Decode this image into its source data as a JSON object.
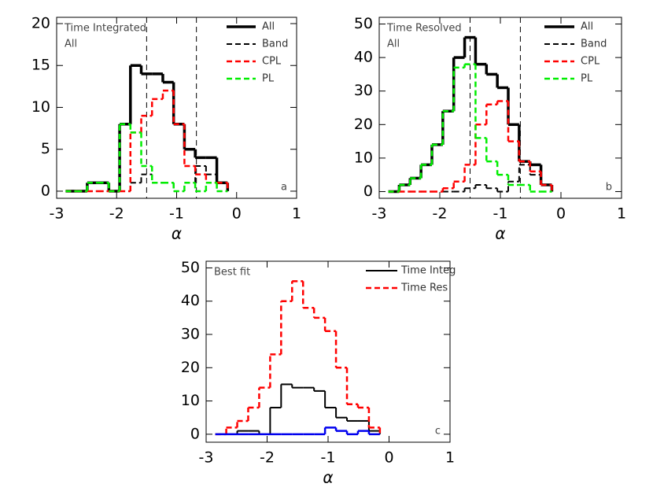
{
  "chart_data": [
    {
      "type": "histogram",
      "annotations": [
        "Time Integrated",
        "All"
      ],
      "panel_label": "a",
      "xlabel": "α",
      "bins": [
        -2.85,
        -2.67,
        -2.49,
        -2.31,
        -2.13,
        -1.95,
        -1.77,
        -1.59,
        -1.41,
        -1.23,
        -1.05,
        -0.87,
        -0.69,
        -0.51,
        -0.33,
        -0.15
      ],
      "series": [
        {
          "name": "All",
          "color": "#000000",
          "dash": false,
          "line_width": 3.5,
          "values": [
            0,
            0,
            1,
            1,
            0,
            8,
            15,
            14,
            14,
            13,
            8,
            5,
            4,
            4,
            1
          ]
        },
        {
          "name": "Band",
          "color": "#000000",
          "dash": true,
          "line_width": 2,
          "values": [
            0,
            0,
            0,
            0,
            0,
            0,
            1,
            2,
            1,
            1,
            0,
            1,
            3,
            2,
            0
          ]
        },
        {
          "name": "CPL",
          "color": "#ff0000",
          "dash": true,
          "line_width": 2.5,
          "values": [
            0,
            0,
            0,
            0,
            0,
            0,
            7,
            9,
            11,
            12,
            8,
            3,
            2,
            1,
            1
          ]
        },
        {
          "name": "PL",
          "color": "#00ee00",
          "dash": true,
          "line_width": 2.5,
          "values": [
            0,
            0,
            1,
            1,
            0,
            8,
            7,
            3,
            1,
            1,
            0,
            1,
            0,
            1,
            0
          ]
        }
      ],
      "vlines": [
        -1.5,
        -0.67
      ],
      "xlim": [
        -3,
        1
      ],
      "xticks": [
        -3,
        -2,
        -1,
        0,
        1
      ],
      "ylim": [
        -0.85,
        20.75
      ],
      "yticks": [
        0,
        5,
        10,
        15,
        20
      ],
      "legend": "upper right"
    },
    {
      "type": "histogram",
      "annotations": [
        "Time Resolved",
        "All"
      ],
      "panel_label": "b",
      "xlabel": "α",
      "bins": [
        -2.85,
        -2.67,
        -2.49,
        -2.31,
        -2.13,
        -1.95,
        -1.77,
        -1.59,
        -1.41,
        -1.23,
        -1.05,
        -0.87,
        -0.69,
        -0.51,
        -0.33,
        -0.15
      ],
      "series": [
        {
          "name": "All",
          "color": "#000000",
          "dash": false,
          "line_width": 3.5,
          "values": [
            0,
            2,
            4,
            8,
            14,
            24,
            40,
            46,
            38,
            35,
            31,
            20,
            9,
            8,
            2
          ]
        },
        {
          "name": "Band",
          "color": "#000000",
          "dash": true,
          "line_width": 2,
          "values": [
            0,
            0,
            0,
            0,
            0,
            0,
            0,
            1,
            2,
            1,
            0,
            3,
            8,
            5,
            2
          ]
        },
        {
          "name": "CPL",
          "color": "#ff0000",
          "dash": true,
          "line_width": 2.5,
          "values": [
            0,
            0,
            0,
            0,
            0,
            1,
            3,
            8,
            20,
            26,
            27,
            15,
            9,
            6,
            2
          ]
        },
        {
          "name": "PL",
          "color": "#00ee00",
          "dash": true,
          "line_width": 2.5,
          "values": [
            0,
            2,
            4,
            8,
            14,
            24,
            37,
            38,
            16,
            9,
            5,
            2,
            2,
            0,
            0
          ]
        }
      ],
      "vlines": [
        -1.5,
        -0.67
      ],
      "xlim": [
        -3,
        1
      ],
      "xticks": [
        -3,
        -2,
        -1,
        0,
        1
      ],
      "ylim": [
        -2,
        52
      ],
      "yticks": [
        0,
        10,
        20,
        30,
        40,
        50
      ],
      "legend": "upper right"
    },
    {
      "type": "histogram",
      "annotations": [
        "Best fit"
      ],
      "panel_label": "c",
      "xlabel": "α",
      "bins": [
        -2.85,
        -2.67,
        -2.49,
        -2.31,
        -2.13,
        -1.95,
        -1.77,
        -1.59,
        -1.41,
        -1.23,
        -1.05,
        -0.87,
        -0.69,
        -0.51,
        -0.33,
        -0.15
      ],
      "series": [
        {
          "name": "Time Integ",
          "color": "#000000",
          "dash": false,
          "line_width": 2,
          "values": [
            0,
            0,
            1,
            1,
            0,
            8,
            15,
            14,
            14,
            13,
            8,
            5,
            4,
            4,
            1
          ]
        },
        {
          "name": "Time Res",
          "color": "#ff0000",
          "dash": true,
          "line_width": 2.5,
          "values": [
            0,
            2,
            4,
            8,
            14,
            24,
            40,
            46,
            38,
            35,
            31,
            20,
            9,
            8,
            2
          ]
        },
        {
          "color": "#0000ee",
          "dash": false,
          "line_width": 2.5,
          "values": [
            0,
            0,
            0,
            0,
            0,
            0,
            0,
            0,
            0,
            0,
            2,
            1,
            0,
            1,
            0
          ]
        }
      ],
      "vlines": [],
      "xlim": [
        -3,
        1
      ],
      "xticks": [
        -3,
        -2,
        -1,
        0,
        1
      ],
      "ylim": [
        -2.4,
        52
      ],
      "yticks": [
        0,
        10,
        20,
        30,
        40,
        50
      ],
      "legend": "upper right"
    }
  ]
}
